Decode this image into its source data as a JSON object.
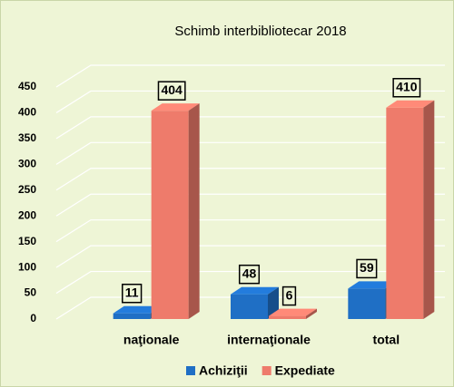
{
  "chart_data": {
    "type": "bar3d",
    "title": "Schimb interbibliotecar 2018",
    "categories": [
      "naţionale",
      "internaţionale",
      "total"
    ],
    "series": [
      {
        "name": "Achiziţii",
        "color": "#1f6fc5",
        "values": [
          11,
          48,
          59
        ]
      },
      {
        "name": "Expediate",
        "color": "#ee7b6b",
        "values": [
          404,
          6,
          410
        ]
      }
    ],
    "ylim": [
      0,
      450
    ],
    "yticks": [
      0,
      50,
      100,
      150,
      200,
      250,
      300,
      350,
      400,
      450
    ],
    "grid": true,
    "legend": "bottom"
  }
}
